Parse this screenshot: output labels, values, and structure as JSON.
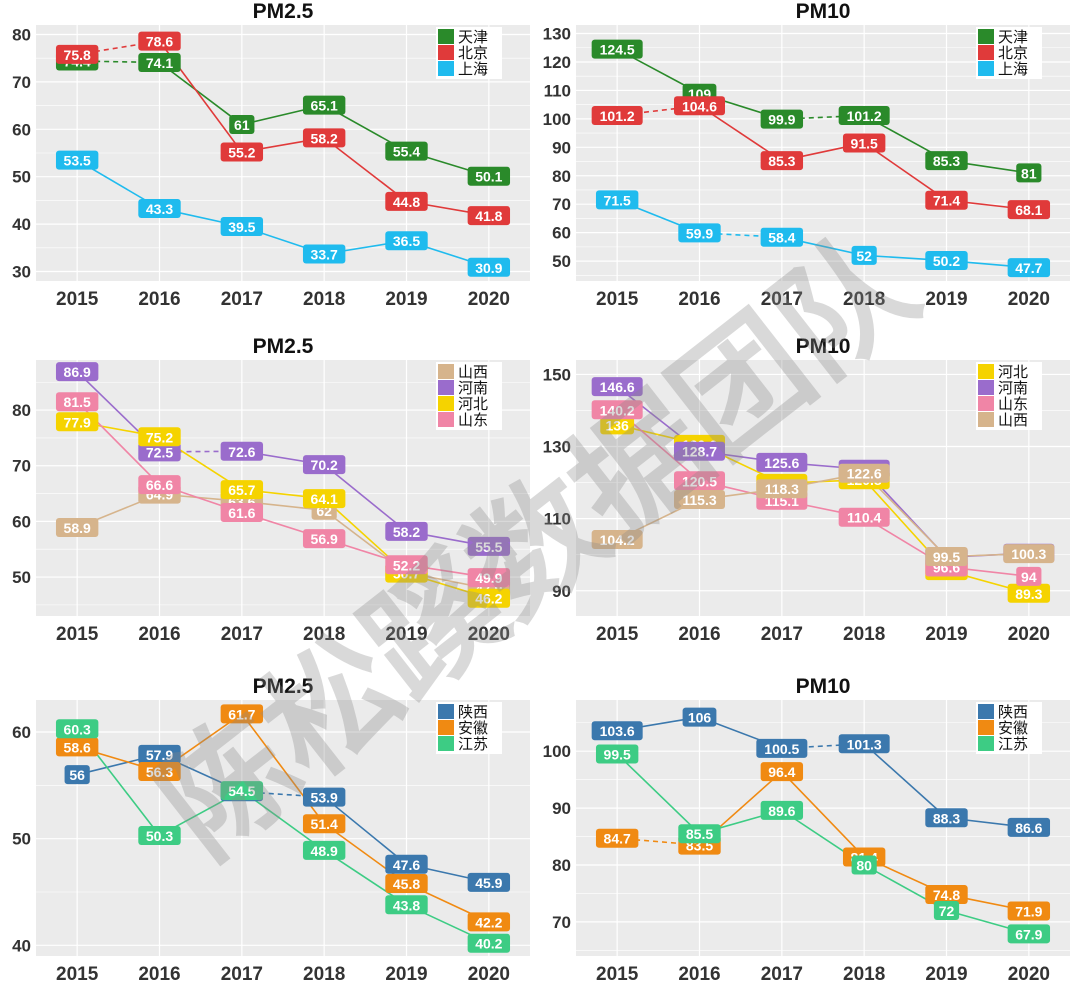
{
  "watermark": {
    "text": "陈松蹊数据团队",
    "color": "#8a8a8a"
  },
  "chart_data": [
    {
      "id": "p1",
      "type": "line",
      "title": "PM2.5",
      "xlabel": "",
      "ylabel": "",
      "categories": [
        "2015",
        "2016",
        "2017",
        "2018",
        "2019",
        "2020"
      ],
      "ylim": [
        28,
        82
      ],
      "yticks": [
        30,
        40,
        50,
        60,
        70,
        80
      ],
      "grid": true,
      "legend_position": "top-right",
      "legend": [
        "天津",
        "北京",
        "上海"
      ],
      "series": [
        {
          "name": "天津",
          "color": "#2a8a2a",
          "values": [
            74.4,
            74.1,
            61,
            65.1,
            55.4,
            50.1
          ],
          "dashed_segments": [
            0
          ]
        },
        {
          "name": "北京",
          "color": "#e03a3a",
          "values": [
            75.8,
            78.6,
            55.2,
            58.2,
            44.8,
            41.8
          ],
          "dashed_segments": [
            0
          ]
        },
        {
          "name": "上海",
          "color": "#1fbbee",
          "values": [
            53.5,
            43.3,
            39.5,
            33.7,
            36.5,
            30.9
          ],
          "dashed_segments": []
        }
      ]
    },
    {
      "id": "p2",
      "type": "line",
      "title": "PM10",
      "xlabel": "",
      "ylabel": "",
      "categories": [
        "2015",
        "2016",
        "2017",
        "2018",
        "2019",
        "2020"
      ],
      "ylim": [
        43,
        133
      ],
      "yticks": [
        50,
        60,
        70,
        80,
        90,
        100,
        110,
        120,
        130
      ],
      "grid": true,
      "legend_position": "top-right",
      "legend": [
        "天津",
        "北京",
        "上海"
      ],
      "series": [
        {
          "name": "天津",
          "color": "#2a8a2a",
          "values": [
            124.5,
            109,
            99.9,
            101.2,
            85.3,
            81
          ],
          "dashed_segments": [
            2
          ]
        },
        {
          "name": "北京",
          "color": "#e03a3a",
          "values": [
            101.2,
            104.6,
            85.3,
            91.5,
            71.4,
            68.1
          ],
          "dashed_segments": [
            0
          ]
        },
        {
          "name": "上海",
          "color": "#1fbbee",
          "values": [
            71.5,
            59.9,
            58.4,
            52,
            50.2,
            47.7
          ],
          "dashed_segments": [
            1
          ]
        }
      ]
    },
    {
      "id": "p3",
      "type": "line",
      "title": "PM2.5",
      "xlabel": "",
      "ylabel": "",
      "categories": [
        "2015",
        "2016",
        "2017",
        "2018",
        "2019",
        "2020"
      ],
      "ylim": [
        43,
        89
      ],
      "yticks": [
        50,
        60,
        70,
        80
      ],
      "grid": true,
      "legend_position": "top-right",
      "legend": [
        "山西",
        "河南",
        "河北",
        "山东"
      ],
      "series": [
        {
          "name": "山西",
          "color": "#d6b48c",
          "values": [
            58.9,
            64.9,
            63.6,
            62,
            50.8,
            47.9
          ],
          "dashed_segments": []
        },
        {
          "name": "河南",
          "color": "#9a6ccc",
          "values": [
            86.9,
            72.5,
            72.6,
            70.2,
            58.2,
            55.5
          ],
          "dashed_segments": [
            1
          ]
        },
        {
          "name": "河北",
          "color": "#f5d300",
          "values": [
            77.9,
            75.2,
            65.7,
            64.1,
            50.7,
            46.2
          ],
          "dashed_segments": []
        },
        {
          "name": "山东",
          "color": "#f085a6",
          "values": [
            81.5,
            66.6,
            61.6,
            56.9,
            52.2,
            49.9
          ],
          "dashed_segments": []
        }
      ]
    },
    {
      "id": "p4",
      "type": "line",
      "title": "PM10",
      "xlabel": "",
      "ylabel": "",
      "categories": [
        "2015",
        "2016",
        "2017",
        "2018",
        "2019",
        "2020"
      ],
      "ylim": [
        83,
        154
      ],
      "yticks": [
        90,
        110,
        130,
        150
      ],
      "grid": true,
      "legend_position": "top-right",
      "legend": [
        "河北",
        "河南",
        "山东",
        "山西"
      ],
      "series": [
        {
          "name": "河北",
          "color": "#f5d300",
          "values": [
            136,
            130.6,
            119.8,
            120.8,
            95.6,
            89.3
          ],
          "dashed_segments": []
        },
        {
          "name": "河南",
          "color": "#9a6ccc",
          "values": [
            146.6,
            128.7,
            125.6,
            123.7,
            99.3,
            100.4
          ],
          "dashed_segments": []
        },
        {
          "name": "山东",
          "color": "#f085a6",
          "values": [
            140.2,
            120.5,
            115.1,
            110.4,
            96.6,
            94
          ],
          "dashed_segments": []
        },
        {
          "name": "山西",
          "color": "#d6b48c",
          "values": [
            104.2,
            115.3,
            118.3,
            122.6,
            99.5,
            100.3
          ],
          "dashed_segments": []
        }
      ]
    },
    {
      "id": "p5",
      "type": "line",
      "title": "PM2.5",
      "xlabel": "",
      "ylabel": "",
      "categories": [
        "2015",
        "2016",
        "2017",
        "2018",
        "2019",
        "2020"
      ],
      "ylim": [
        39,
        63
      ],
      "yticks": [
        40,
        50,
        60
      ],
      "grid": true,
      "legend_position": "top-right",
      "legend": [
        "陕西",
        "安徽",
        "江苏"
      ],
      "series": [
        {
          "name": "陕西",
          "color": "#3b78ad",
          "values": [
            56,
            57.9,
            54.4,
            53.9,
            47.6,
            45.9
          ],
          "dashed_segments": [
            2
          ]
        },
        {
          "name": "安徽",
          "color": "#f08a12",
          "values": [
            58.6,
            56.3,
            61.7,
            51.4,
            45.8,
            42.2
          ],
          "dashed_segments": []
        },
        {
          "name": "江苏",
          "color": "#3dcc84",
          "values": [
            60.3,
            50.3,
            54.5,
            48.9,
            43.8,
            40.2
          ],
          "dashed_segments": []
        }
      ]
    },
    {
      "id": "p6",
      "type": "line",
      "title": "PM10",
      "xlabel": "",
      "ylabel": "",
      "categories": [
        "2015",
        "2016",
        "2017",
        "2018",
        "2019",
        "2020"
      ],
      "ylim": [
        64,
        109
      ],
      "yticks": [
        70,
        80,
        90,
        100
      ],
      "grid": true,
      "legend_position": "top-right",
      "legend": [
        "陕西",
        "安徽",
        "江苏"
      ],
      "series": [
        {
          "name": "陕西",
          "color": "#3b78ad",
          "values": [
            103.6,
            106,
            100.5,
            101.3,
            88.3,
            86.6
          ],
          "dashed_segments": [
            2
          ]
        },
        {
          "name": "安徽",
          "color": "#f08a12",
          "values": [
            84.7,
            83.5,
            96.4,
            81.4,
            74.8,
            71.9
          ],
          "dashed_segments": [
            0
          ]
        },
        {
          "name": "江苏",
          "color": "#3dcc84",
          "values": [
            99.5,
            85.5,
            89.6,
            80,
            72,
            67.9
          ],
          "dashed_segments": []
        }
      ]
    }
  ]
}
